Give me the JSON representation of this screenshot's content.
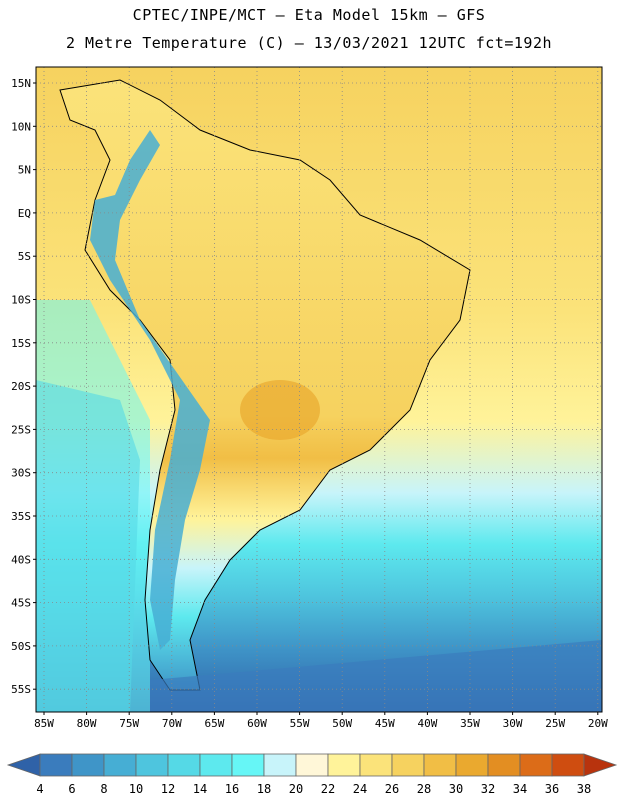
{
  "header": {
    "line1": "CPTEC/INPE/MCT –  Eta Model 15km – GFS",
    "line2": "2 Metre Temperature (C) – 13/03/2021 12UTC fct=192h"
  },
  "axes": {
    "lat_labels": [
      "15N",
      "10N",
      "5N",
      "EQ",
      "5S",
      "10S",
      "15S",
      "20S",
      "25S",
      "30S",
      "35S",
      "40S",
      "45S",
      "50S",
      "55S"
    ],
    "lon_labels": [
      "85W",
      "80W",
      "75W",
      "70W",
      "65W",
      "60W",
      "55W",
      "50W",
      "45W",
      "40W",
      "35W",
      "30W",
      "25W",
      "20W"
    ]
  },
  "colorbar": {
    "values": [
      "4",
      "6",
      "8",
      "10",
      "12",
      "14",
      "16",
      "18",
      "20",
      "22",
      "24",
      "26",
      "28",
      "30",
      "32",
      "34",
      "36",
      "38"
    ],
    "colors": [
      "#2f62a8",
      "#3a7cbd",
      "#3f95c8",
      "#46aed4",
      "#4ec5de",
      "#55d9e6",
      "#5de9ee",
      "#66f6f6",
      "#c8f4fa",
      "#fff7d8",
      "#fff39a",
      "#fbe37a",
      "#f6d25f",
      "#f1be45",
      "#eaa92f",
      "#e38e22",
      "#dc6c18",
      "#cf4d10",
      "#b8330d"
    ]
  },
  "colors": {
    "ocean_north": "#f6d25f",
    "land_warm": "#fbe37a",
    "grid": "#888888",
    "border": "#000000"
  }
}
